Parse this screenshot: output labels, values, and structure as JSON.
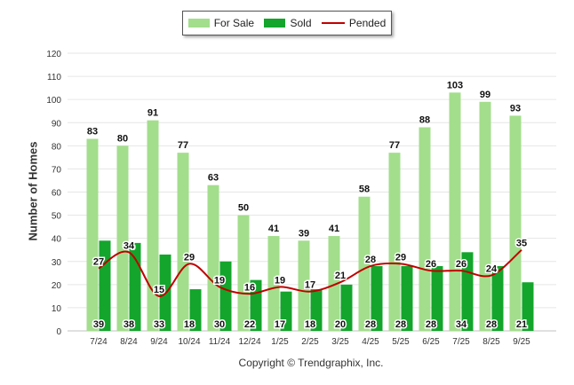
{
  "legend": {
    "for_sale": "For Sale",
    "sold": "Sold",
    "pended": "Pended"
  },
  "footer": {
    "copyright": "Copyright © Trendgraphix, Inc."
  },
  "colors": {
    "for_sale": "#a3de8c",
    "sold": "#13a52c",
    "pended": "#c00000",
    "grid": "#e6e6e6"
  },
  "chart_data": {
    "type": "bar",
    "title": "",
    "xlabel": "",
    "ylabel": "Number of Homes",
    "ylim": [
      0,
      120
    ],
    "yticks": [
      0,
      10,
      20,
      30,
      40,
      50,
      60,
      70,
      80,
      90,
      100,
      110,
      120
    ],
    "categories": [
      "7/24",
      "8/24",
      "9/24",
      "10/24",
      "11/24",
      "12/24",
      "1/25",
      "2/25",
      "3/25",
      "4/25",
      "5/25",
      "6/25",
      "7/25",
      "8/25",
      "9/25"
    ],
    "series": [
      {
        "name": "For Sale",
        "type": "bar",
        "values": [
          83,
          80,
          91,
          77,
          63,
          50,
          41,
          39,
          41,
          58,
          77,
          88,
          103,
          99,
          93
        ]
      },
      {
        "name": "Sold",
        "type": "bar",
        "values": [
          39,
          38,
          33,
          18,
          30,
          22,
          17,
          18,
          20,
          28,
          28,
          28,
          34,
          28,
          21
        ]
      },
      {
        "name": "Pended",
        "type": "line",
        "values": [
          27,
          34,
          15,
          29,
          19,
          16,
          19,
          17,
          21,
          28,
          29,
          26,
          26,
          24,
          35
        ]
      }
    ]
  }
}
